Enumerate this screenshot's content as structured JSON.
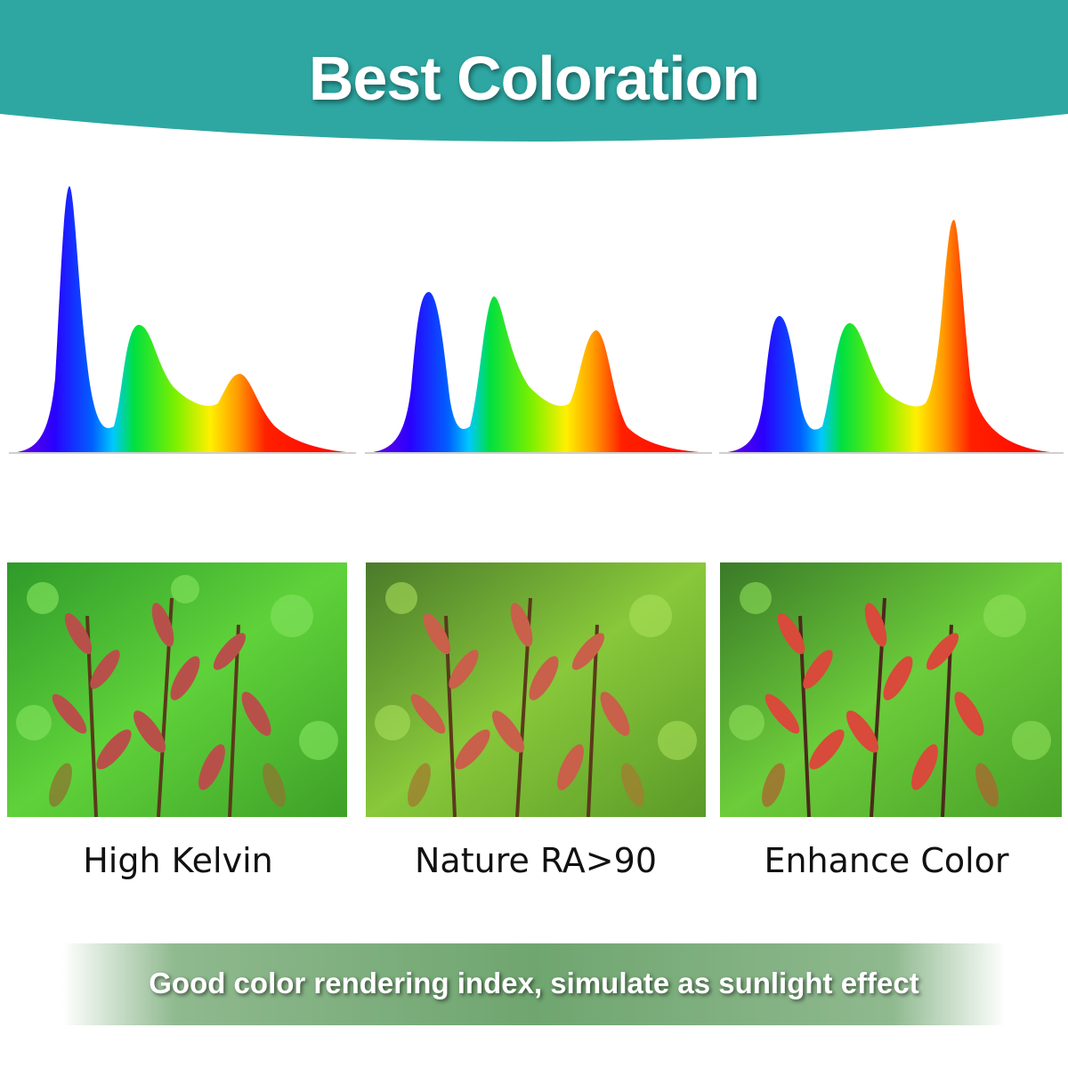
{
  "header": {
    "title": "Best Coloration",
    "color": "#2ea7a2"
  },
  "panels": [
    {
      "caption": "High Kelvin",
      "tone": "cool"
    },
    {
      "caption": "Nature RA>90",
      "tone": "natural"
    },
    {
      "caption": "Enhance Color",
      "tone": "warm"
    }
  ],
  "footer": {
    "text": "Good color rendering index, simulate as sunlight effect",
    "color": "#6fa56f"
  }
}
